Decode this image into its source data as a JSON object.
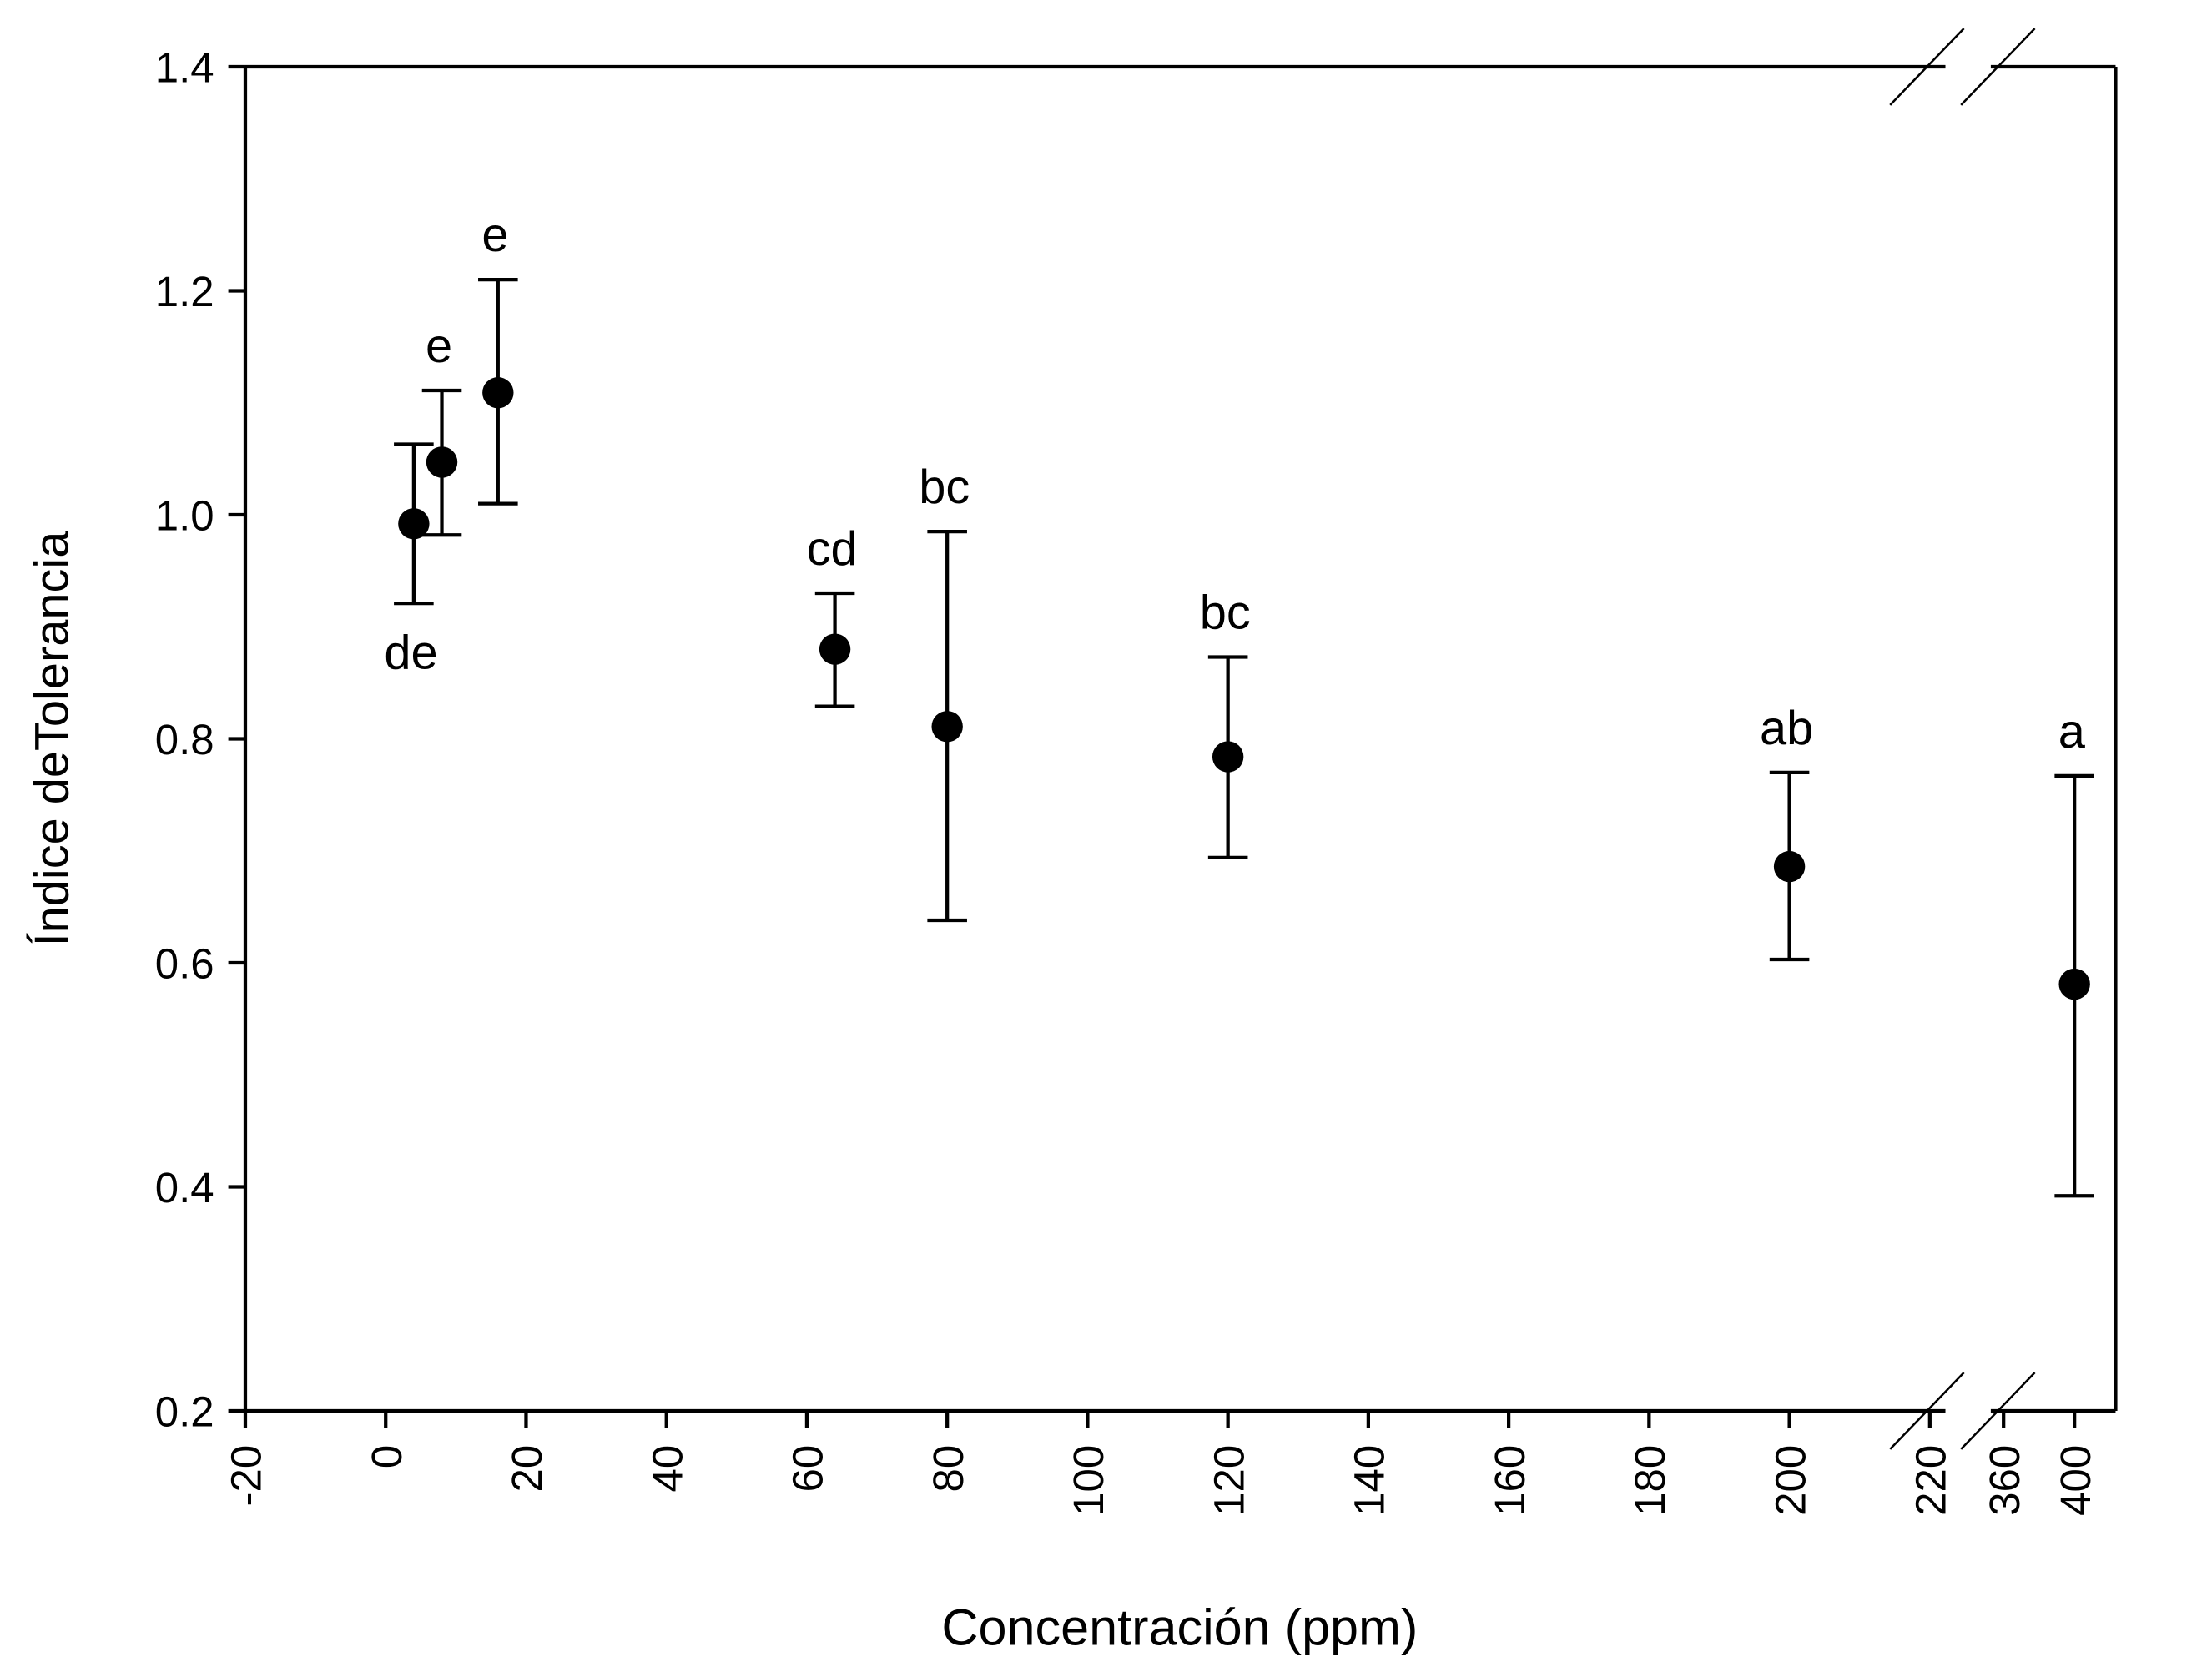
{
  "chart_data": {
    "type": "scatter",
    "title": "",
    "xlabel": "Concentración (ppm)",
    "ylabel": "Índice deTolerancia",
    "ylim": [
      0.2,
      1.4
    ],
    "yticks": [
      "0.2",
      "0.4",
      "0.6",
      "0.8",
      "1.0",
      "1.2",
      "1.4"
    ],
    "x_axis_broken": true,
    "x_segments": [
      {
        "range": [
          -20,
          220
        ],
        "ticks": [
          "-20",
          "0",
          "20",
          "40",
          "60",
          "80",
          "100",
          "120",
          "140",
          "160",
          "180",
          "200",
          "220"
        ]
      },
      {
        "range": [
          360,
          420
        ],
        "ticks": [
          "360",
          "400"
        ]
      }
    ],
    "grid": false,
    "marker_color": "#000000",
    "points": [
      {
        "x": 4,
        "y": 0.992,
        "err_low": 0.921,
        "err_high": 1.063,
        "label": "de",
        "label_pos": "below"
      },
      {
        "x": 8,
        "y": 1.047,
        "err_low": 0.982,
        "err_high": 1.111,
        "label": "e",
        "label_pos": "above"
      },
      {
        "x": 16,
        "y": 1.109,
        "err_low": 1.01,
        "err_high": 1.21,
        "label": "e",
        "label_pos": "above"
      },
      {
        "x": 64,
        "y": 0.88,
        "err_low": 0.829,
        "err_high": 0.93,
        "label": "cd",
        "label_pos": "above"
      },
      {
        "x": 80,
        "y": 0.811,
        "err_low": 0.638,
        "err_high": 0.985,
        "label": "bc",
        "label_pos": "above"
      },
      {
        "x": 120,
        "y": 0.784,
        "err_low": 0.694,
        "err_high": 0.873,
        "label": "bc",
        "label_pos": "above"
      },
      {
        "x": 200,
        "y": 0.686,
        "err_low": 0.603,
        "err_high": 0.77,
        "label": "ab",
        "label_pos": "above"
      },
      {
        "x": 400,
        "y": 0.581,
        "err_low": 0.392,
        "err_high": 0.767,
        "label": "a",
        "label_pos": "above"
      }
    ]
  }
}
